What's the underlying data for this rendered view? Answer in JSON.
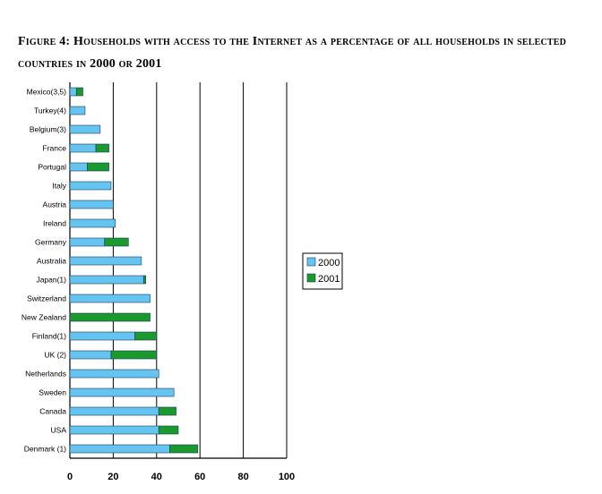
{
  "title": "Figure 4: Households with access to the Internet as a percentage of all households in selected countries in 2000 or 2001",
  "chart_data": {
    "type": "bar",
    "orientation": "horizontal",
    "stacked": true,
    "categories": [
      "Mexico(3,5)",
      "Turkey(4)",
      "Belgium(3)",
      "France",
      "Portugal",
      "Italy",
      "Austria",
      "Ireland",
      "Germany",
      "Australia",
      "Japan(1)",
      "Switzerland",
      "New Zealand",
      "Finland(1)",
      "UK (2)",
      "Netherlands",
      "Sweden",
      "Canada",
      "USA",
      "Denmark (1)"
    ],
    "series": [
      {
        "name": "2000",
        "color": "#66c4f0",
        "values": [
          3,
          7,
          14,
          12,
          8,
          19,
          20,
          21,
          16,
          33,
          34,
          37,
          0,
          30,
          19,
          41,
          48,
          41,
          41,
          46
        ]
      },
      {
        "name": "2001",
        "color": "#1a9a2e",
        "values": [
          3,
          0,
          0,
          6,
          10,
          0,
          0,
          0,
          11,
          0,
          1,
          0,
          37,
          10,
          21,
          0,
          0,
          8,
          9,
          13
        ]
      }
    ],
    "xlim": [
      0,
      100
    ],
    "xticks": [
      0,
      20,
      40,
      60,
      80,
      100
    ],
    "gridlines": "vertical",
    "legend_position": "right"
  }
}
